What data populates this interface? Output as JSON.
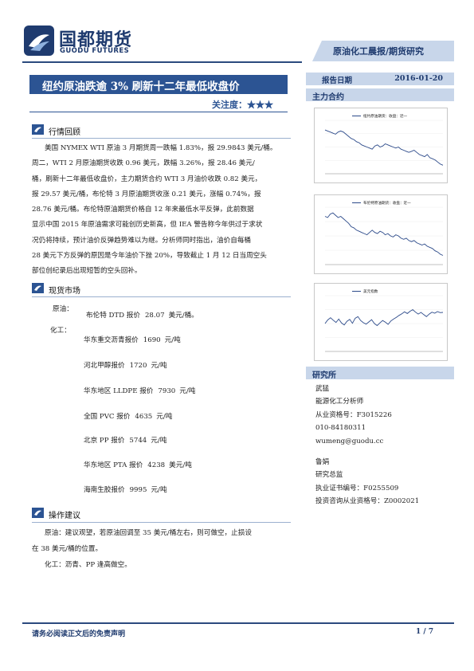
{
  "header": {
    "logo_cn": "国都期货",
    "logo_en": "GUODU FUTURES",
    "report_type": "原油化工晨报/期货研究"
  },
  "title": {
    "text": "纽约原油跌逾 3% 刷新十二年最低收盘价",
    "attention_label": "关注度：",
    "attention_stars": "★★★"
  },
  "sections": {
    "review": {
      "title": "行情回顾",
      "lines": [
        "美国 NYMEX WTI 原油 3 月期货周一跌幅 1.83%，报 29.9843 美元/桶。",
        "周二，WTI 2 月原油期货收跌 0.96 美元，跌幅 3.26%，报 28.46 美元/",
        "桶，刷新十二年最低收盘价，主力期货合约 WTI 3 月油价收跌 0.82 美元，",
        "报 29.57 美元/桶，布伦特 3 月原油期货收涨 0.21 美元，涨幅 0.74%，报",
        "28.76 美元/桶。布伦特原油期货价格自 12 年来最低水平反弹，此前数据",
        "显示中国 2015 年原油需求可能创历史新高，但 IEA 警告称今年供过于求状",
        "况仍将持续，预计油价反弹趋势难以为继。分析师同时指出，油价自每桶",
        "28 美元下方反弹的原因是今年油价下挫 20%，导致截止 1 月 12 日当周空头",
        "部位创纪录后出现短暂的空头回补。"
      ]
    },
    "market": {
      "title": "现货市场",
      "crude_label": "原油：",
      "chem_label": "化工：",
      "crude_item": {
        "name": "布伦特 DTD 报价",
        "value": "28.07",
        "unit": "美元/桶。"
      },
      "chem_items": [
        {
          "name": "华东重交沥青报价",
          "value": "1690",
          "unit": "元/吨"
        },
        {
          "name": "河北甲醇报价",
          "value": "1720",
          "unit": "元/吨"
        },
        {
          "name": "华东地区 LLDPE 报价",
          "value": "7930",
          "unit": "元/吨"
        },
        {
          "name": "全国 PVC 报价",
          "value": "4635",
          "unit": "元/吨"
        },
        {
          "name": "北京 PP 报价",
          "value": "5744",
          "unit": "元/吨"
        },
        {
          "name": "华东地区 PTA 报价",
          "value": "4238",
          "unit": "美元/吨"
        },
        {
          "name": "海南生胶报价",
          "value": "9995",
          "unit": "元/吨"
        }
      ]
    },
    "operation": {
      "title": "操作建议",
      "crude_line1": "原油：建议观望，若原油回调至 35 美元/桶左右，则可做空，止损设",
      "crude_line2": "在 38 美元/桶的位置。",
      "chem_line": "化工：沥青、PP 逢高做空。"
    }
  },
  "sidebar": {
    "date_label": "报告日期",
    "date_value": "2016-01-20",
    "main_contract_title": "主力合约",
    "research_title": "研究所",
    "analyst1": [
      "武猛",
      "能源化工分析师",
      "从业资格号：F3015226",
      "010-84180311",
      "wumeng@guodu.cc"
    ],
    "analyst2": [
      "鲁娟",
      "研究总监",
      "执业证书编号：F0255509",
      "投资咨询从业资格号：Z0002021"
    ]
  },
  "charts": {
    "accent": "#2c4a8a",
    "chart1": {
      "legend": "纽约原油期货：收盘：近一"
    },
    "chart2": {
      "legend": "布伦特原油期货：收盘：近一"
    },
    "chart3": {
      "legend": "美元指数"
    }
  },
  "chart_data": [
    {
      "type": "line",
      "series": [
        {
          "name": "纽约原油期货：收盘：近一",
          "values": [
            61,
            60,
            59,
            58,
            57,
            59,
            60,
            59,
            57,
            55,
            53,
            52,
            50,
            49,
            47,
            46,
            45,
            44,
            43,
            46,
            47,
            45,
            46,
            48,
            47,
            46,
            45,
            44,
            45,
            43,
            42,
            41,
            40,
            41,
            42,
            40,
            38,
            37,
            36,
            38,
            35,
            34,
            33,
            31,
            29,
            28
          ]
        }
      ],
      "ylim": [
        20,
        70
      ]
    },
    {
      "type": "line",
      "series": [
        {
          "name": "布伦特原油期货：收盘：近一",
          "values": [
            62,
            61,
            64,
            65,
            63,
            61,
            62,
            60,
            58,
            56,
            53,
            52,
            50,
            49,
            48,
            47,
            46,
            48,
            50,
            48,
            47,
            49,
            48,
            46,
            47,
            45,
            44,
            46,
            45,
            43,
            42,
            43,
            41,
            40,
            41,
            39,
            38,
            37,
            38,
            36,
            35,
            34,
            32,
            31,
            29,
            28
          ]
        }
      ],
      "ylim": [
        20,
        70
      ]
    },
    {
      "type": "line",
      "series": [
        {
          "name": "美元指数",
          "values": [
            95.0,
            96.3,
            97.1,
            96.2,
            95.4,
            96.6,
            95.2,
            94.5,
            95.8,
            96.5,
            95.1,
            96.9,
            97.5,
            96.1,
            95.3,
            94.8,
            95.6,
            96.4,
            95.0,
            94.3,
            95.2,
            96.1,
            95.5,
            94.7,
            95.9,
            96.6,
            97.2,
            97.9,
            98.5,
            99.2,
            98.6,
            99.4,
            100.0,
            99.1,
            98.4,
            99.0,
            98.2,
            97.5,
            98.4,
            99.1,
            98.7,
            99.3,
            98.9,
            99.0
          ]
        }
      ],
      "ylim": [
        85,
        105
      ]
    }
  ]
}
